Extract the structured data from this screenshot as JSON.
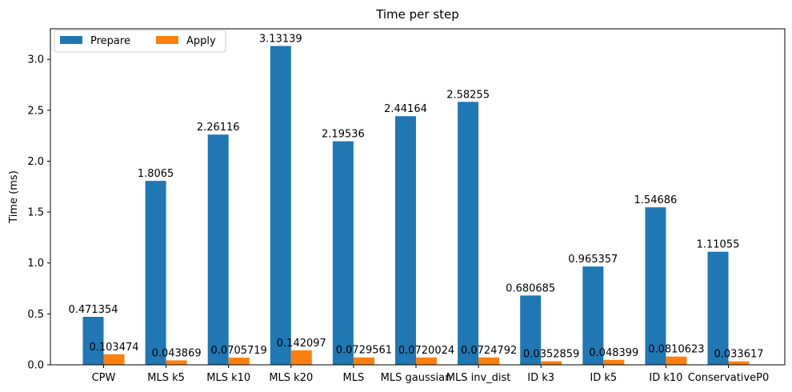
{
  "chart_data": {
    "type": "bar",
    "title": "Time per step",
    "xlabel": "",
    "ylabel": "Time (ms)",
    "ylim": [
      0,
      3.3
    ],
    "yticks": [
      0.0,
      0.5,
      1.0,
      1.5,
      2.0,
      2.5,
      3.0
    ],
    "ytick_labels": [
      "0.0",
      "0.5",
      "1.0",
      "1.5",
      "2.0",
      "2.5",
      "3.0"
    ],
    "grid": false,
    "legend_position": "top-left",
    "categories": [
      "CPW",
      "MLS k5",
      "MLS k10",
      "MLS k20",
      "MLS",
      "MLS gaussian",
      "MLS inv_dist",
      "ID k3",
      "ID k5",
      "ID k10",
      "ConservativeP0"
    ],
    "series": [
      {
        "name": "Prepare",
        "color": "#1f77b4",
        "values": [
          0.471354,
          1.8065,
          2.26116,
          3.13139,
          2.19536,
          2.44164,
          2.58255,
          0.680685,
          0.965357,
          1.54686,
          1.11055
        ],
        "labels": [
          "0.471354",
          "1.8065",
          "2.26116",
          "3.13139",
          "2.19536",
          "2.44164",
          "2.58255",
          "0.680685",
          "0.965357",
          "1.54686",
          "1.11055"
        ]
      },
      {
        "name": "Apply",
        "color": "#ff7f0e",
        "values": [
          0.103474,
          0.043869,
          0.0705719,
          0.142097,
          0.0729561,
          0.0720024,
          0.0724792,
          0.0352859,
          0.048399,
          0.0810623,
          0.033617
        ],
        "labels": [
          "0.103474",
          "0.043869",
          "0.0705719",
          "0.142097",
          "0.0729561",
          "0.0720024",
          "0.0724792",
          "0.0352859",
          "0.048399",
          "0.0810623",
          "0.033617"
        ]
      }
    ]
  }
}
